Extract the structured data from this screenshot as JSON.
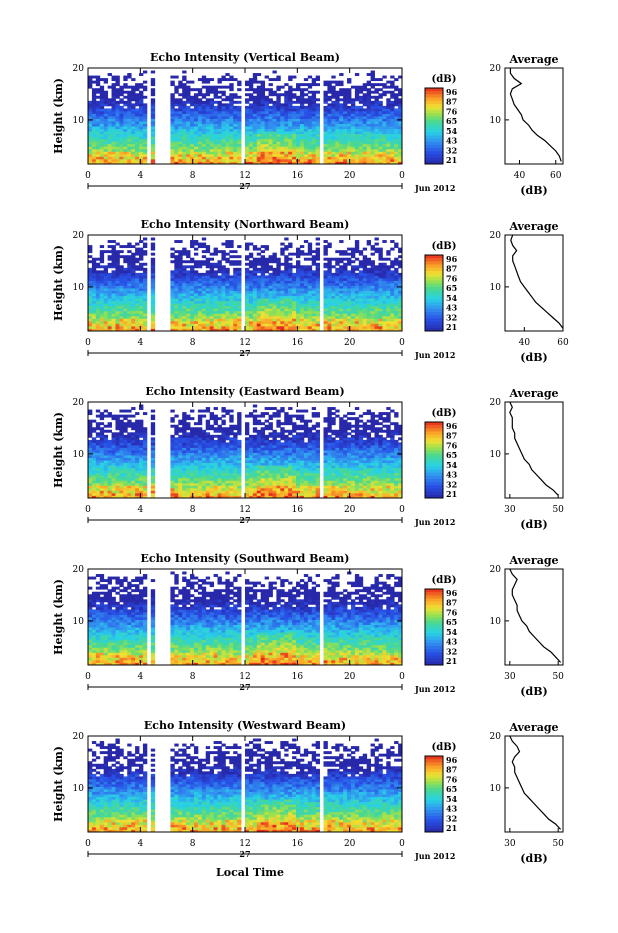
{
  "figure": {
    "xlabel": "Local Time",
    "date_label": "Jun 2012",
    "day_label": "27",
    "ylabel": "Height (km)",
    "cbar_unit": "(dB)",
    "avg_title": "Average",
    "avg_xlabel": "(dB)"
  },
  "chart_data": [
    {
      "type": "heatmap",
      "title": "Echo Intensity (Vertical Beam)",
      "xlabel": "Local Time",
      "ylabel": "Height (km)",
      "x_ticks": [
        "0",
        "4",
        "8",
        "12",
        "16",
        "20",
        "0"
      ],
      "y_ticks": [
        "10",
        "20"
      ],
      "xlim": [
        0,
        24
      ],
      "ylim": [
        1.5,
        20
      ],
      "colorbar": {
        "label": "(dB)",
        "ticks": [
          "96",
          "87",
          "76",
          "65",
          "54",
          "43",
          "32",
          "21"
        ]
      },
      "data_gaps_hours": [
        [
          4.5,
          4.8
        ],
        [
          5.2,
          6.2
        ],
        [
          11.6,
          12.1
        ],
        [
          17.6,
          17.9
        ]
      ],
      "average_profile": {
        "title": "Average",
        "xlabel": "(dB)",
        "x_ticks": [
          "40",
          "60"
        ],
        "xlim": [
          32,
          64
        ],
        "y_ticks": [
          "10",
          "20"
        ],
        "height_km": [
          2,
          3,
          4,
          5,
          6,
          7,
          8,
          9,
          10,
          11,
          12,
          13,
          14,
          15,
          16,
          17,
          18,
          19,
          20
        ],
        "db": [
          63,
          62,
          60,
          57,
          54,
          50,
          47,
          45,
          42,
          41,
          39,
          37,
          36,
          35,
          36,
          41,
          37,
          35,
          35
        ]
      }
    },
    {
      "type": "heatmap",
      "title": "Echo Intensity (Northward Beam)",
      "xlabel": "Local Time",
      "ylabel": "Height (km)",
      "x_ticks": [
        "0",
        "4",
        "8",
        "12",
        "16",
        "20",
        "0"
      ],
      "y_ticks": [
        "10",
        "20"
      ],
      "xlim": [
        0,
        24
      ],
      "ylim": [
        1.5,
        20
      ],
      "colorbar": {
        "label": "(dB)",
        "ticks": [
          "96",
          "87",
          "76",
          "65",
          "54",
          "43",
          "32",
          "21"
        ]
      },
      "data_gaps_hours": [
        [
          4.5,
          4.8
        ],
        [
          5.2,
          6.2
        ],
        [
          11.6,
          12.1
        ],
        [
          17.6,
          17.9
        ]
      ],
      "average_profile": {
        "title": "Average",
        "xlabel": "(dB)",
        "x_ticks": [
          "40",
          "60"
        ],
        "xlim": [
          30,
          60
        ],
        "y_ticks": [
          "10",
          "20"
        ],
        "height_km": [
          2,
          3,
          4,
          5,
          6,
          7,
          8,
          9,
          10,
          11,
          12,
          13,
          14,
          15,
          16,
          17,
          18,
          19,
          20
        ],
        "db": [
          60,
          58,
          55,
          52,
          49,
          46,
          44,
          42,
          40,
          38,
          37,
          36,
          35,
          34,
          34,
          36,
          34,
          33,
          34
        ]
      }
    },
    {
      "type": "heatmap",
      "title": "Echo Intensity (Eastward Beam)",
      "xlabel": "Local Time",
      "ylabel": "Height (km)",
      "x_ticks": [
        "0",
        "4",
        "8",
        "12",
        "16",
        "20",
        "0"
      ],
      "y_ticks": [
        "10",
        "20"
      ],
      "xlim": [
        0,
        24
      ],
      "ylim": [
        1.5,
        20
      ],
      "colorbar": {
        "label": "(dB)",
        "ticks": [
          "96",
          "87",
          "76",
          "65",
          "54",
          "43",
          "32",
          "21"
        ]
      },
      "data_gaps_hours": [
        [
          4.5,
          4.8
        ],
        [
          5.2,
          6.2
        ],
        [
          11.6,
          12.1
        ],
        [
          17.6,
          17.9
        ]
      ],
      "average_profile": {
        "title": "Average",
        "xlabel": "(dB)",
        "x_ticks": [
          "30",
          "50"
        ],
        "xlim": [
          28,
          52
        ],
        "y_ticks": [
          "10",
          "20"
        ],
        "height_km": [
          2,
          3,
          4,
          5,
          6,
          7,
          8,
          9,
          10,
          11,
          12,
          13,
          14,
          15,
          16,
          17,
          18,
          19,
          20
        ],
        "db": [
          50,
          48,
          45,
          43,
          41,
          39,
          38,
          36,
          35,
          34,
          33,
          32,
          32,
          31,
          31,
          31,
          30,
          31,
          30
        ]
      }
    },
    {
      "type": "heatmap",
      "title": "Echo Intensity (Southward Beam)",
      "xlabel": "Local Time",
      "ylabel": "Height (km)",
      "x_ticks": [
        "0",
        "4",
        "8",
        "12",
        "16",
        "20",
        "0"
      ],
      "y_ticks": [
        "10",
        "20"
      ],
      "xlim": [
        0,
        24
      ],
      "ylim": [
        1.5,
        20
      ],
      "colorbar": {
        "label": "(dB)",
        "ticks": [
          "96",
          "87",
          "76",
          "65",
          "54",
          "43",
          "32",
          "21"
        ]
      },
      "data_gaps_hours": [
        [
          4.5,
          4.8
        ],
        [
          5.2,
          6.2
        ],
        [
          11.6,
          12.1
        ],
        [
          17.6,
          17.9
        ]
      ],
      "average_profile": {
        "title": "Average",
        "xlabel": "(dB)",
        "x_ticks": [
          "30",
          "50"
        ],
        "xlim": [
          28,
          52
        ],
        "y_ticks": [
          "10",
          "20"
        ],
        "height_km": [
          2,
          3,
          4,
          5,
          6,
          7,
          8,
          9,
          10,
          11,
          12,
          13,
          14,
          15,
          16,
          17,
          18,
          19,
          20
        ],
        "db": [
          51,
          49,
          47,
          44,
          42,
          40,
          38,
          37,
          35,
          34,
          33,
          33,
          32,
          31,
          31,
          32,
          33,
          31,
          30
        ]
      }
    },
    {
      "type": "heatmap",
      "title": "Echo Intensity (Westward Beam)",
      "xlabel": "Local Time",
      "ylabel": "Height (km)",
      "x_ticks": [
        "0",
        "4",
        "8",
        "12",
        "16",
        "20",
        "0"
      ],
      "y_ticks": [
        "10",
        "20"
      ],
      "xlim": [
        0,
        24
      ],
      "ylim": [
        1.5,
        20
      ],
      "colorbar": {
        "label": "(dB)",
        "ticks": [
          "96",
          "87",
          "76",
          "65",
          "54",
          "43",
          "32",
          "21"
        ]
      },
      "data_gaps_hours": [
        [
          4.5,
          4.8
        ],
        [
          5.2,
          6.2
        ],
        [
          11.6,
          12.1
        ],
        [
          17.6,
          17.9
        ]
      ],
      "average_profile": {
        "title": "Average",
        "xlabel": "(dB)",
        "x_ticks": [
          "30",
          "50"
        ],
        "xlim": [
          28,
          52
        ],
        "y_ticks": [
          "10",
          "20"
        ],
        "height_km": [
          2,
          3,
          4,
          5,
          6,
          7,
          8,
          9,
          10,
          11,
          12,
          13,
          14,
          15,
          16,
          17,
          18,
          19,
          20
        ],
        "db": [
          51,
          49,
          46,
          44,
          42,
          40,
          38,
          36,
          35,
          34,
          33,
          32,
          32,
          31,
          32,
          34,
          33,
          31,
          30
        ]
      }
    }
  ]
}
